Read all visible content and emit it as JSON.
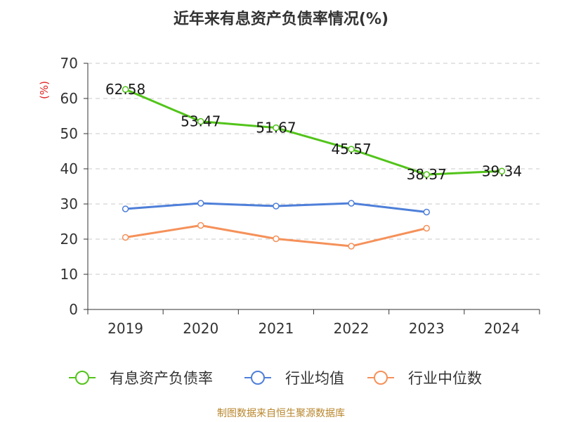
{
  "chart_data": {
    "type": "line",
    "title": "近年来有息资产负债率情况(%)",
    "ylabel": "(%)",
    "xlabel": "",
    "categories": [
      "2019",
      "2020",
      "2021",
      "2022",
      "2023",
      "2024"
    ],
    "ylim": [
      0,
      70
    ],
    "yticks": [
      0,
      10,
      20,
      30,
      40,
      50,
      60,
      70
    ],
    "grid": true,
    "legend_position": "bottom",
    "series": [
      {
        "name": "有息资产负债率",
        "color": "#52c41a",
        "values": [
          62.58,
          53.47,
          51.67,
          45.57,
          38.37,
          39.34
        ],
        "labels": [
          "62.58",
          "53.47",
          "51.67",
          "45.57",
          "38.37",
          "39.34"
        ]
      },
      {
        "name": "行业均值",
        "color": "#4e7fd9",
        "values": [
          28.6,
          30.2,
          29.4,
          30.2,
          27.7,
          null
        ]
      },
      {
        "name": "行业中位数",
        "color": "#f5915a",
        "values": [
          20.5,
          23.9,
          20.1,
          18.0,
          23.1,
          null
        ]
      }
    ],
    "source": "制图数据来自恒生聚源数据库"
  }
}
